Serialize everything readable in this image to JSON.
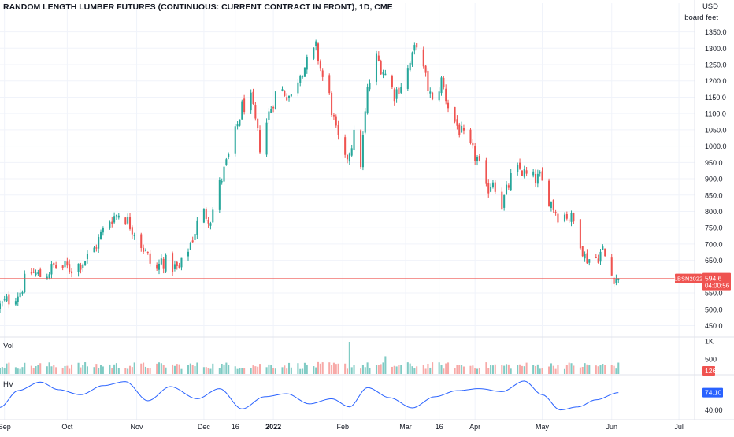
{
  "header": {
    "title": "RANDOM LENGTH LUMBER FUTURES (CONTINUOUS: CURRENT CONTRACT IN FRONT), 1D, CME",
    "currency": "USD",
    "unit": "board feet"
  },
  "colors": {
    "up": "#26a69a",
    "down": "#ef5350",
    "hv_line": "#2962ff",
    "grid": "#f0f3fa",
    "axis_text": "#131722",
    "last_price_line": "#ef5350"
  },
  "price_badge": {
    "symbol": "LBSN2022",
    "last": "594.6",
    "countdown": "04:00:56"
  },
  "volume_panel": {
    "label": "Vol",
    "last": "126"
  },
  "hv_panel": {
    "label": "HV",
    "last": "74.10"
  },
  "chart_data": {
    "type": "candlestick",
    "price_axis": {
      "ticks": [
        1350,
        1300,
        1250,
        1200,
        1150,
        1100,
        1050,
        1000,
        950,
        900,
        850,
        800,
        750,
        700,
        650,
        550,
        500,
        450
      ],
      "tick_labels": [
        "1350.0",
        "1300.0",
        "1250.0",
        "1200.0",
        "1150.0",
        "1100.0",
        "1050.0",
        "1000.0",
        "950.0",
        "900.0",
        "850.0",
        "800.0",
        "750.0",
        "700.0",
        "650.0",
        "550.0",
        "500.0",
        "450.0"
      ],
      "range": [
        415,
        1390
      ]
    },
    "volume_axis": {
      "ticks": [
        "1K",
        "500"
      ]
    },
    "hv_axis": {
      "ticks": [
        "40.00"
      ]
    },
    "time_axis": {
      "labels": [
        {
          "label": "Sep",
          "day": 2
        },
        {
          "label": "Oct",
          "day": 30
        },
        {
          "label": "Nov",
          "day": 61
        },
        {
          "label": "Dec",
          "day": 91
        },
        {
          "label": "16",
          "day": 105
        },
        {
          "label": "2022",
          "day": 122
        },
        {
          "label": "Feb",
          "day": 153
        },
        {
          "label": "Mar",
          "day": 181
        },
        {
          "label": "16",
          "day": 196
        },
        {
          "label": "Apr",
          "day": 212
        },
        {
          "label": "May",
          "day": 242
        },
        {
          "label": "Jun",
          "day": 273
        },
        {
          "label": "Jul",
          "day": 303
        }
      ],
      "bold": [
        "2022"
      ]
    },
    "anchors": [
      {
        "day": 0,
        "close": 510
      },
      {
        "day": 9,
        "close": 555
      },
      {
        "day": 13,
        "close": 615
      },
      {
        "day": 19,
        "close": 600
      },
      {
        "day": 24,
        "close": 630
      },
      {
        "day": 33,
        "close": 625
      },
      {
        "day": 41,
        "close": 670
      },
      {
        "day": 48,
        "close": 770
      },
      {
        "day": 54,
        "close": 800
      },
      {
        "day": 60,
        "close": 740
      },
      {
        "day": 66,
        "close": 660
      },
      {
        "day": 69,
        "close": 605
      },
      {
        "day": 72,
        "close": 650
      },
      {
        "day": 80,
        "close": 620
      },
      {
        "day": 86,
        "close": 720
      },
      {
        "day": 90,
        "close": 800
      },
      {
        "day": 94,
        "close": 780
      },
      {
        "day": 98,
        "close": 880
      },
      {
        "day": 104,
        "close": 1010
      },
      {
        "day": 108,
        "close": 1120
      },
      {
        "day": 112,
        "close": 1140
      },
      {
        "day": 116,
        "close": 1000
      },
      {
        "day": 120,
        "close": 1100
      },
      {
        "day": 124,
        "close": 1180
      },
      {
        "day": 130,
        "close": 1150
      },
      {
        "day": 134,
        "close": 1230
      },
      {
        "day": 138,
        "close": 1260
      },
      {
        "day": 141,
        "close": 1300
      },
      {
        "day": 144,
        "close": 1210
      },
      {
        "day": 147,
        "close": 1150
      },
      {
        "day": 150,
        "close": 1040
      },
      {
        "day": 154,
        "close": 950
      },
      {
        "day": 158,
        "close": 1030
      },
      {
        "day": 161,
        "close": 950
      },
      {
        "day": 164,
        "close": 1170
      },
      {
        "day": 168,
        "close": 1270
      },
      {
        "day": 172,
        "close": 1220
      },
      {
        "day": 176,
        "close": 1160
      },
      {
        "day": 180,
        "close": 1200
      },
      {
        "day": 184,
        "close": 1270
      },
      {
        "day": 186,
        "close": 1320
      },
      {
        "day": 189,
        "close": 1230
      },
      {
        "day": 193,
        "close": 1130
      },
      {
        "day": 197,
        "close": 1200
      },
      {
        "day": 201,
        "close": 1100
      },
      {
        "day": 205,
        "close": 1050
      },
      {
        "day": 209,
        "close": 1000
      },
      {
        "day": 213,
        "close": 960
      },
      {
        "day": 217,
        "close": 860
      },
      {
        "day": 220,
        "close": 900
      },
      {
        "day": 224,
        "close": 820
      },
      {
        "day": 228,
        "close": 900
      },
      {
        "day": 232,
        "close": 930
      },
      {
        "day": 236,
        "close": 900
      },
      {
        "day": 241,
        "close": 900
      },
      {
        "day": 245,
        "close": 840
      },
      {
        "day": 249,
        "close": 790
      },
      {
        "day": 253,
        "close": 790
      },
      {
        "day": 257,
        "close": 760
      },
      {
        "day": 261,
        "close": 660
      },
      {
        "day": 265,
        "close": 650
      },
      {
        "day": 269,
        "close": 680
      },
      {
        "day": 273,
        "close": 605
      },
      {
        "day": 276,
        "close": 594.6
      }
    ],
    "volume_spikes": [
      {
        "day": 156,
        "ratio": 1.0
      },
      {
        "day": 172,
        "ratio": 0.55
      }
    ],
    "hv_anchors": [
      {
        "day": 0,
        "value": 45
      },
      {
        "day": 8,
        "value": 78
      },
      {
        "day": 18,
        "value": 95
      },
      {
        "day": 26,
        "value": 80
      },
      {
        "day": 36,
        "value": 70
      },
      {
        "day": 46,
        "value": 88
      },
      {
        "day": 56,
        "value": 96
      },
      {
        "day": 66,
        "value": 58
      },
      {
        "day": 76,
        "value": 86
      },
      {
        "day": 88,
        "value": 62
      },
      {
        "day": 98,
        "value": 82
      },
      {
        "day": 108,
        "value": 42
      },
      {
        "day": 118,
        "value": 66
      },
      {
        "day": 128,
        "value": 72
      },
      {
        "day": 138,
        "value": 52
      },
      {
        "day": 148,
        "value": 62
      },
      {
        "day": 156,
        "value": 46
      },
      {
        "day": 164,
        "value": 84
      },
      {
        "day": 174,
        "value": 64
      },
      {
        "day": 184,
        "value": 44
      },
      {
        "day": 194,
        "value": 66
      },
      {
        "day": 204,
        "value": 78
      },
      {
        "day": 214,
        "value": 82
      },
      {
        "day": 224,
        "value": 76
      },
      {
        "day": 234,
        "value": 97
      },
      {
        "day": 242,
        "value": 70
      },
      {
        "day": 250,
        "value": 40
      },
      {
        "day": 258,
        "value": 46
      },
      {
        "day": 266,
        "value": 60
      },
      {
        "day": 276,
        "value": 74.1
      }
    ]
  }
}
